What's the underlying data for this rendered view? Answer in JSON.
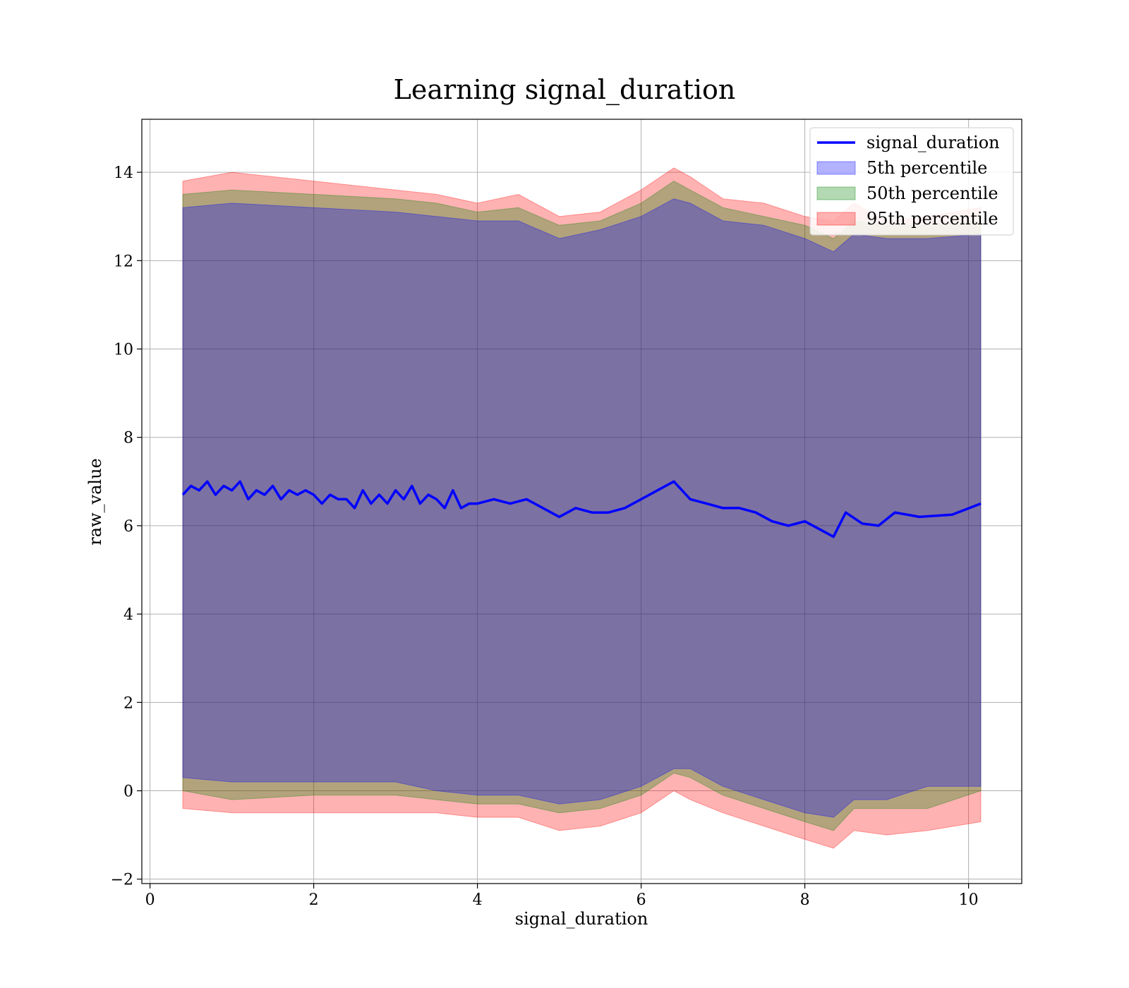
{
  "chart_data": {
    "type": "line",
    "title": "Learning signal_duration",
    "xlabel": "signal_duration",
    "ylabel": "raw_value",
    "xlim": [
      -0.1,
      10.65
    ],
    "ylim": [
      -2.1,
      15.2
    ],
    "xticks": [
      0,
      2,
      4,
      6,
      8,
      10
    ],
    "yticks": [
      -2,
      0,
      2,
      4,
      6,
      8,
      10,
      12,
      14
    ],
    "grid": true,
    "legend_position": "top-right",
    "line_series": {
      "name": "signal_duration",
      "color": "#0000ff",
      "x": [
        0.4,
        0.5,
        0.6,
        0.7,
        0.8,
        0.9,
        1.0,
        1.1,
        1.2,
        1.3,
        1.4,
        1.5,
        1.6,
        1.7,
        1.8,
        1.9,
        2.0,
        2.1,
        2.2,
        2.3,
        2.4,
        2.5,
        2.6,
        2.7,
        2.8,
        2.9,
        3.0,
        3.1,
        3.2,
        3.3,
        3.4,
        3.5,
        3.6,
        3.7,
        3.8,
        3.9,
        4.0,
        4.2,
        4.4,
        4.6,
        4.8,
        5.0,
        5.2,
        5.4,
        5.6,
        5.8,
        6.0,
        6.2,
        6.4,
        6.6,
        6.8,
        7.0,
        7.2,
        7.4,
        7.6,
        7.8,
        8.0,
        8.2,
        8.35,
        8.5,
        8.7,
        8.9,
        9.1,
        9.4,
        9.8,
        10.15
      ],
      "y": [
        6.7,
        6.9,
        6.8,
        7.0,
        6.7,
        6.9,
        6.8,
        7.0,
        6.6,
        6.8,
        6.7,
        6.9,
        6.6,
        6.8,
        6.7,
        6.8,
        6.7,
        6.5,
        6.7,
        6.6,
        6.6,
        6.4,
        6.8,
        6.5,
        6.7,
        6.5,
        6.8,
        6.6,
        6.9,
        6.5,
        6.7,
        6.6,
        6.4,
        6.8,
        6.4,
        6.5,
        6.5,
        6.6,
        6.5,
        6.6,
        6.4,
        6.2,
        6.4,
        6.3,
        6.3,
        6.4,
        6.6,
        6.8,
        7.0,
        6.6,
        6.5,
        6.4,
        6.4,
        6.3,
        6.1,
        6.0,
        6.1,
        5.9,
        5.75,
        6.3,
        6.05,
        6.0,
        6.3,
        6.2,
        6.25,
        6.5
      ]
    },
    "bands": [
      {
        "name": "95th percentile",
        "color": "#ff0000",
        "x": [
          0.4,
          1.0,
          2.0,
          3.0,
          3.5,
          4.0,
          4.5,
          5.0,
          5.5,
          6.0,
          6.4,
          6.6,
          7.0,
          7.5,
          8.0,
          8.35,
          8.6,
          9.0,
          9.5,
          10.15
        ],
        "upper": [
          13.8,
          14.0,
          13.8,
          13.6,
          13.5,
          13.3,
          13.5,
          13.0,
          13.1,
          13.6,
          14.1,
          13.9,
          13.4,
          13.3,
          13.0,
          12.9,
          13.3,
          12.9,
          13.0,
          13.2
        ],
        "lower": [
          -0.4,
          -0.5,
          -0.5,
          -0.5,
          -0.5,
          -0.6,
          -0.6,
          -0.9,
          -0.8,
          -0.5,
          0.0,
          -0.2,
          -0.5,
          -0.8,
          -1.1,
          -1.3,
          -0.9,
          -1.0,
          -0.9,
          -0.7
        ]
      },
      {
        "name": "50th percentile",
        "color": "#008000",
        "x": [
          0.4,
          1.0,
          2.0,
          3.0,
          3.5,
          4.0,
          4.5,
          5.0,
          5.5,
          6.0,
          6.4,
          6.6,
          7.0,
          7.5,
          8.0,
          8.35,
          8.6,
          9.0,
          9.5,
          10.15
        ],
        "upper": [
          13.5,
          13.6,
          13.5,
          13.4,
          13.3,
          13.1,
          13.2,
          12.8,
          12.9,
          13.3,
          13.8,
          13.6,
          13.2,
          13.0,
          12.8,
          12.5,
          12.9,
          12.8,
          12.8,
          12.9
        ],
        "lower": [
          0.0,
          -0.2,
          -0.1,
          -0.1,
          -0.2,
          -0.3,
          -0.3,
          -0.5,
          -0.4,
          -0.1,
          0.4,
          0.3,
          -0.1,
          -0.4,
          -0.7,
          -0.9,
          -0.4,
          -0.4,
          -0.4,
          0.0
        ]
      },
      {
        "name": "5th percentile",
        "color": "#0000ff",
        "x": [
          0.4,
          1.0,
          2.0,
          3.0,
          3.5,
          4.0,
          4.5,
          5.0,
          5.5,
          6.0,
          6.4,
          6.6,
          7.0,
          7.5,
          8.0,
          8.35,
          8.6,
          9.0,
          9.5,
          10.15
        ],
        "upper": [
          13.2,
          13.3,
          13.2,
          13.1,
          13.0,
          12.9,
          12.9,
          12.5,
          12.7,
          13.0,
          13.4,
          13.3,
          12.9,
          12.8,
          12.5,
          12.2,
          12.6,
          12.5,
          12.5,
          12.6
        ],
        "lower": [
          0.3,
          0.2,
          0.2,
          0.2,
          0.0,
          -0.1,
          -0.1,
          -0.3,
          -0.2,
          0.1,
          0.5,
          0.5,
          0.1,
          -0.2,
          -0.5,
          -0.6,
          -0.2,
          -0.2,
          0.1,
          0.1
        ]
      }
    ],
    "legend": [
      "signal_duration",
      "5th percentile",
      "50th percentile",
      "95th percentile"
    ]
  }
}
